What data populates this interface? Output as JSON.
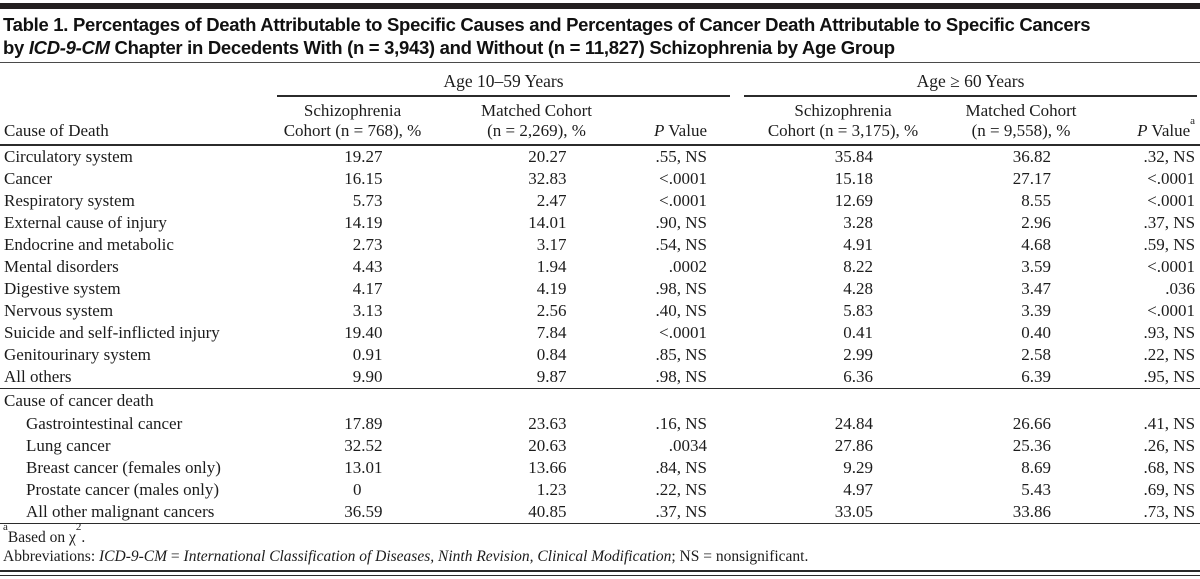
{
  "title": {
    "line1": "Table 1. Percentages of Death Attributable to Specific Causes and Percentages of Cancer Death Attributable to Specific Cancers",
    "line2_pre": "by ",
    "line2_italic": "ICD-9-CM",
    "line2_post": " Chapter in Decedents With (n = 3,943) and Without (n = 11,827) Schizophrenia by Age Group"
  },
  "table": {
    "row_header": "Cause of Death",
    "groups": [
      {
        "label": "Age 10–59 Years"
      },
      {
        "label": "Age ≥ 60 Years"
      }
    ],
    "columns": [
      {
        "line1": "Schizophrenia",
        "line2": "Cohort (n = 768), %"
      },
      {
        "line1": "Matched Cohort",
        "line2": "(n = 2,269), %"
      },
      {
        "p_italic": "P",
        "label": " Value",
        "sup": ""
      },
      {
        "line1": "Schizophrenia",
        "line2": "Cohort (n = 3,175), %"
      },
      {
        "line1": "Matched Cohort",
        "line2": "(n = 9,558), %"
      },
      {
        "p_italic": "P",
        "label": " Value",
        "sup": "a"
      }
    ],
    "rows": [
      {
        "label": "Circulatory system",
        "values": [
          "19.27",
          "20.27",
          ".55, NS",
          "35.84",
          "36.82",
          ".32, NS"
        ]
      },
      {
        "label": "Cancer",
        "values": [
          "16.15",
          "32.83",
          "<.0001",
          "15.18",
          "27.17",
          "<.0001"
        ]
      },
      {
        "label": "Respiratory system",
        "values": [
          "5.73",
          "2.47",
          "<.0001",
          "12.69",
          "8.55",
          "<.0001"
        ]
      },
      {
        "label": "External cause of injury",
        "values": [
          "14.19",
          "14.01",
          ".90, NS",
          "3.28",
          "2.96",
          ".37, NS"
        ]
      },
      {
        "label": "Endocrine and metabolic",
        "values": [
          "2.73",
          "3.17",
          ".54, NS",
          "4.91",
          "4.68",
          ".59, NS"
        ]
      },
      {
        "label": "Mental disorders",
        "values": [
          "4.43",
          "1.94",
          ".0002",
          "8.22",
          "3.59",
          "<.0001"
        ]
      },
      {
        "label": "Digestive system",
        "values": [
          "4.17",
          "4.19",
          ".98, NS",
          "4.28",
          "3.47",
          ".036"
        ]
      },
      {
        "label": "Nervous system",
        "values": [
          "3.13",
          "2.56",
          ".40, NS",
          "5.83",
          "3.39",
          "<.0001"
        ]
      },
      {
        "label": "Suicide and self-inflicted injury",
        "values": [
          "19.40",
          "7.84",
          "<.0001",
          "0.41",
          "0.40",
          ".93, NS"
        ]
      },
      {
        "label": "Genitourinary system",
        "values": [
          "0.91",
          "0.84",
          ".85, NS",
          "2.99",
          "2.58",
          ".22, NS"
        ]
      },
      {
        "label": "All others",
        "values": [
          "9.90",
          "9.87",
          ".98, NS",
          "6.36",
          "6.39",
          ".95, NS"
        ]
      },
      {
        "label": "Cause of cancer death",
        "section": true,
        "values": []
      },
      {
        "label": "Gastrointestinal cancer",
        "indent": true,
        "values": [
          "17.89",
          "23.63",
          ".16, NS",
          "24.84",
          "26.66",
          ".41, NS"
        ]
      },
      {
        "label": "Lung cancer",
        "indent": true,
        "values": [
          "32.52",
          "20.63",
          ".0034",
          "27.86",
          "25.36",
          ".26, NS"
        ]
      },
      {
        "label": "Breast cancer (females only)",
        "indent": true,
        "values": [
          "13.01",
          "13.66",
          ".84, NS",
          "9.29",
          "8.69",
          ".68, NS"
        ]
      },
      {
        "label": "Prostate cancer (males only)",
        "indent": true,
        "values": [
          "0",
          "1.23",
          ".22, NS",
          "4.97",
          "5.43",
          ".69, NS"
        ]
      },
      {
        "label": "All other malignant cancers",
        "indent": true,
        "values": [
          "36.59",
          "40.85",
          ".37, NS",
          "33.05",
          "33.86",
          ".73, NS"
        ]
      }
    ]
  },
  "footnotes": {
    "f1": {
      "sup": "a",
      "text1": "Based on χ",
      "sup2": "2",
      "text2": "."
    },
    "f2": {
      "label": "Abbreviations: ",
      "italic1": "ICD-9-CM",
      "eq": " = ",
      "italic2": "International Classification of Diseases, Ninth Revision, Clinical Modification",
      "rest": "; NS = nonsignificant."
    }
  }
}
